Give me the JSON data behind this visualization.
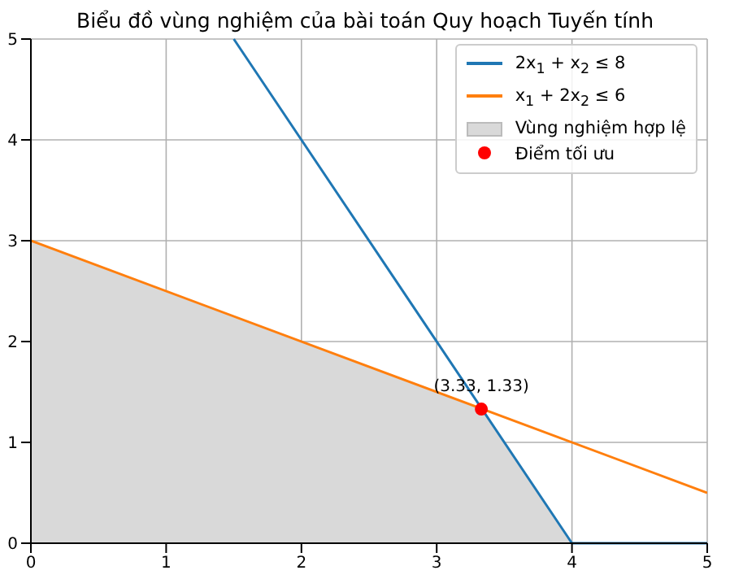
{
  "chart_data": {
    "type": "line",
    "title": "Biểu đồ vùng nghiệm của bài toán Quy hoạch Tuyến tính",
    "series": [
      {
        "name": "2x$_{1}$ + x$_{2}$ ≤ 8",
        "color": "#1f77b4",
        "x": [
          1.5,
          4,
          5
        ],
        "values": [
          5,
          0,
          0
        ]
      },
      {
        "name": "x$_{1}$ + 2x$_{2}$ ≤ 6",
        "color": "#ff7f0e",
        "x": [
          0,
          5
        ],
        "values": [
          3,
          0.5
        ]
      },
      {
        "name": "Vùng nghiệm hợp lệ",
        "color": "#d9d9d9",
        "type": "area",
        "x": [
          0,
          3.33,
          4
        ],
        "values": [
          3,
          1.33,
          0
        ]
      },
      {
        "name": "Điểm tối ưu",
        "color": "#ff0000",
        "type": "scatter",
        "x": [
          3.33
        ],
        "values": [
          1.33
        ]
      }
    ],
    "annotations": [
      {
        "text": "(3.33, 1.33)",
        "x": 3.33,
        "y": 1.33
      }
    ],
    "xlim": [
      0,
      5
    ],
    "xticks": [
      0,
      1,
      2,
      3,
      4,
      5
    ],
    "ylim": [
      0,
      5
    ],
    "yticks": [
      0,
      1,
      2,
      3,
      4,
      5
    ],
    "grid": true,
    "legend": "top right"
  }
}
